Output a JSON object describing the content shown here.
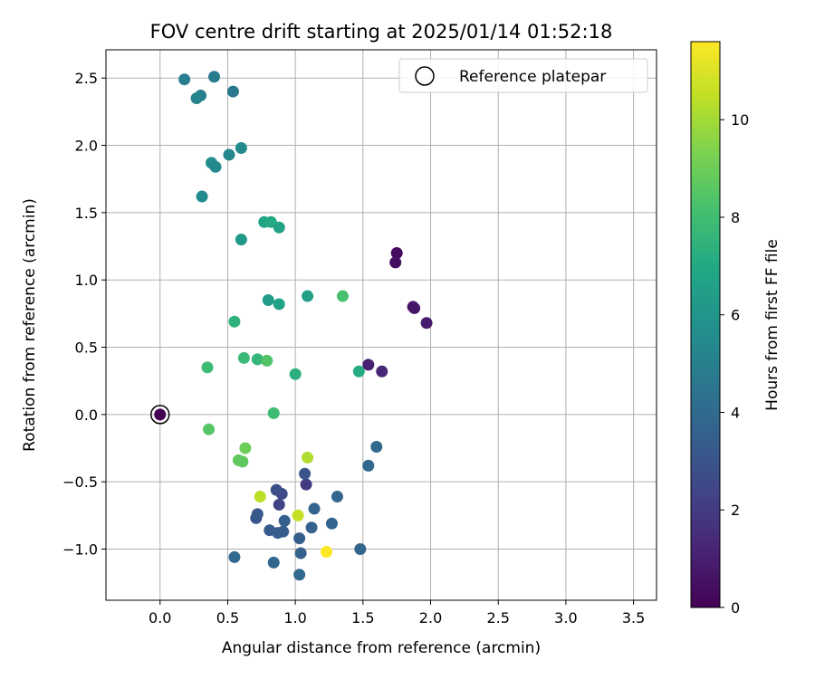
{
  "chart_data": {
    "type": "scatter",
    "title": "FOV centre drift starting at 2025/01/14 01:52:18",
    "xlabel": "Angular distance from reference (arcmin)",
    "ylabel": "Rotation from reference (arcmin)",
    "xlim": [
      -0.4,
      3.67
    ],
    "ylim": [
      -1.38,
      2.71
    ],
    "xticks": [
      0.0,
      0.5,
      1.0,
      1.5,
      2.0,
      2.5,
      3.0,
      3.5
    ],
    "xtick_labels": [
      "0.0",
      "0.5",
      "1.0",
      "1.5",
      "2.0",
      "2.5",
      "3.0",
      "3.5"
    ],
    "yticks": [
      -1.0,
      -0.5,
      0.0,
      0.5,
      1.0,
      1.5,
      2.0,
      2.5
    ],
    "ytick_labels": [
      "−1.0",
      "−0.5",
      "0.0",
      "0.5",
      "1.0",
      "1.5",
      "2.0",
      "2.5"
    ],
    "grid": true,
    "legend": {
      "position": "top-right",
      "entries": [
        "Reference platepar"
      ]
    },
    "reference_point": {
      "x": 0.0,
      "y": 0.0
    },
    "colorbar": {
      "label": "Hours from first FF file",
      "colormap": "viridis",
      "range": [
        0,
        11.6
      ],
      "ticks": [
        0,
        2,
        4,
        6,
        8,
        10
      ],
      "tick_labels": [
        "0",
        "2",
        "4",
        "6",
        "8",
        "10"
      ]
    },
    "points": [
      {
        "x": 0.0,
        "y": 0.0,
        "hours": 0.0
      },
      {
        "x": 1.75,
        "y": 1.2,
        "hours": 0.3
      },
      {
        "x": 1.74,
        "y": 1.13,
        "hours": 0.4
      },
      {
        "x": 1.87,
        "y": 0.8,
        "hours": 0.6
      },
      {
        "x": 1.88,
        "y": 0.79,
        "hours": 0.7
      },
      {
        "x": 1.97,
        "y": 0.68,
        "hours": 0.9
      },
      {
        "x": 1.54,
        "y": 0.37,
        "hours": 1.1
      },
      {
        "x": 1.64,
        "y": 0.32,
        "hours": 1.3
      },
      {
        "x": 1.08,
        "y": -0.52,
        "hours": 2.0
      },
      {
        "x": 0.88,
        "y": -0.67,
        "hours": 2.3
      },
      {
        "x": 0.9,
        "y": -0.59,
        "hours": 2.6
      },
      {
        "x": 0.86,
        "y": -0.56,
        "hours": 2.8
      },
      {
        "x": 1.07,
        "y": -0.44,
        "hours": 3.0
      },
      {
        "x": 0.71,
        "y": -0.77,
        "hours": 3.1
      },
      {
        "x": 0.72,
        "y": -0.74,
        "hours": 3.2
      },
      {
        "x": 0.81,
        "y": -0.86,
        "hours": 3.3
      },
      {
        "x": 0.87,
        "y": -0.88,
        "hours": 3.4
      },
      {
        "x": 0.91,
        "y": -0.87,
        "hours": 3.4
      },
      {
        "x": 0.92,
        "y": -0.79,
        "hours": 3.5
      },
      {
        "x": 1.03,
        "y": -0.92,
        "hours": 3.5
      },
      {
        "x": 1.04,
        "y": -1.03,
        "hours": 3.6
      },
      {
        "x": 1.12,
        "y": -0.84,
        "hours": 3.6
      },
      {
        "x": 1.14,
        "y": -0.7,
        "hours": 3.7
      },
      {
        "x": 1.27,
        "y": -0.81,
        "hours": 3.7
      },
      {
        "x": 1.31,
        "y": -0.61,
        "hours": 3.8
      },
      {
        "x": 1.48,
        "y": -1.0,
        "hours": 3.8
      },
      {
        "x": 1.54,
        "y": -0.38,
        "hours": 3.9
      },
      {
        "x": 1.6,
        "y": -0.24,
        "hours": 4.0
      },
      {
        "x": 0.55,
        "y": -1.06,
        "hours": 3.9
      },
      {
        "x": 0.84,
        "y": -1.1,
        "hours": 3.8
      },
      {
        "x": 1.03,
        "y": -1.19,
        "hours": 3.9
      },
      {
        "x": 0.54,
        "y": 2.4,
        "hours": 4.6
      },
      {
        "x": 0.4,
        "y": 2.51,
        "hours": 4.8
      },
      {
        "x": 0.18,
        "y": 2.49,
        "hours": 4.9
      },
      {
        "x": 0.3,
        "y": 2.37,
        "hours": 5.0
      },
      {
        "x": 0.27,
        "y": 2.35,
        "hours": 5.1
      },
      {
        "x": 0.6,
        "y": 1.98,
        "hours": 5.5
      },
      {
        "x": 0.51,
        "y": 1.93,
        "hours": 5.3
      },
      {
        "x": 0.38,
        "y": 1.87,
        "hours": 5.6
      },
      {
        "x": 0.41,
        "y": 1.84,
        "hours": 5.4
      },
      {
        "x": 0.31,
        "y": 1.62,
        "hours": 5.5
      },
      {
        "x": 0.6,
        "y": 1.3,
        "hours": 6.2
      },
      {
        "x": 0.77,
        "y": 1.43,
        "hours": 6.8
      },
      {
        "x": 0.82,
        "y": 1.43,
        "hours": 7.0
      },
      {
        "x": 0.88,
        "y": 1.39,
        "hours": 6.7
      },
      {
        "x": 0.8,
        "y": 0.85,
        "hours": 6.4
      },
      {
        "x": 0.88,
        "y": 0.82,
        "hours": 6.7
      },
      {
        "x": 1.09,
        "y": 0.88,
        "hours": 6.5
      },
      {
        "x": 0.55,
        "y": 0.69,
        "hours": 7.4
      },
      {
        "x": 1.35,
        "y": 0.88,
        "hours": 8.2
      },
      {
        "x": 0.62,
        "y": 0.42,
        "hours": 7.8
      },
      {
        "x": 0.72,
        "y": 0.41,
        "hours": 7.6
      },
      {
        "x": 0.79,
        "y": 0.4,
        "hours": 8.4
      },
      {
        "x": 0.35,
        "y": 0.35,
        "hours": 7.9
      },
      {
        "x": 1.0,
        "y": 0.3,
        "hours": 7.3
      },
      {
        "x": 1.47,
        "y": 0.32,
        "hours": 7.1
      },
      {
        "x": 0.84,
        "y": 0.01,
        "hours": 7.9
      },
      {
        "x": 0.36,
        "y": -0.11,
        "hours": 8.5
      },
      {
        "x": 0.63,
        "y": -0.25,
        "hours": 9.0
      },
      {
        "x": 0.58,
        "y": -0.34,
        "hours": 8.8
      },
      {
        "x": 0.61,
        "y": -0.35,
        "hours": 8.7
      },
      {
        "x": 1.09,
        "y": -0.32,
        "hours": 10.2
      },
      {
        "x": 0.74,
        "y": -0.61,
        "hours": 10.4
      },
      {
        "x": 1.02,
        "y": -0.75,
        "hours": 10.6
      },
      {
        "x": 1.23,
        "y": -1.02,
        "hours": 11.6
      }
    ]
  }
}
